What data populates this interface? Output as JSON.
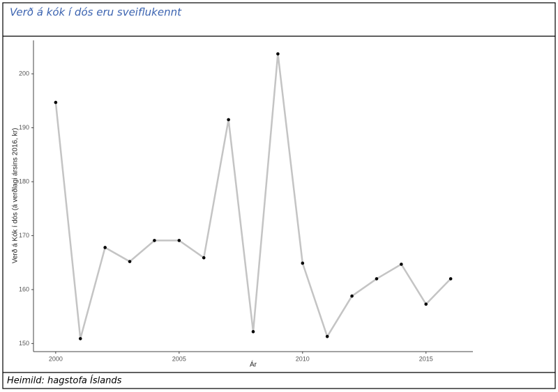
{
  "chart_data": {
    "type": "line",
    "title": "Verð á kók í dós eru sveiflukennt",
    "source": "Heimild: hagstofa Íslands",
    "x_label": "Ár",
    "y_label": "Verð á Kók í dós (á verðlagi ársins 2016, kr)",
    "x": [
      2000,
      2001,
      2002,
      2003,
      2004,
      2005,
      2006,
      2007,
      2008,
      2009,
      2010,
      2011,
      2012,
      2013,
      2014,
      2015,
      2016
    ],
    "series": [
      {
        "color": "#c4c4c4",
        "marker_color": "#000000",
        "values": [
          194.7,
          150.9,
          167.8,
          165.2,
          169.1,
          169.1,
          165.9,
          191.5,
          152.2,
          203.7,
          164.9,
          151.3,
          158.8,
          162.0,
          164.7,
          157.3,
          162.0
        ]
      }
    ],
    "xlim": [
      1999.1,
      2016.9
    ],
    "xticks": [
      2000,
      2005,
      2010,
      2015
    ],
    "ylim": [
      148.5,
      206.2
    ],
    "yticks": [
      150,
      160,
      170,
      180,
      190,
      200
    ],
    "grid": false
  }
}
